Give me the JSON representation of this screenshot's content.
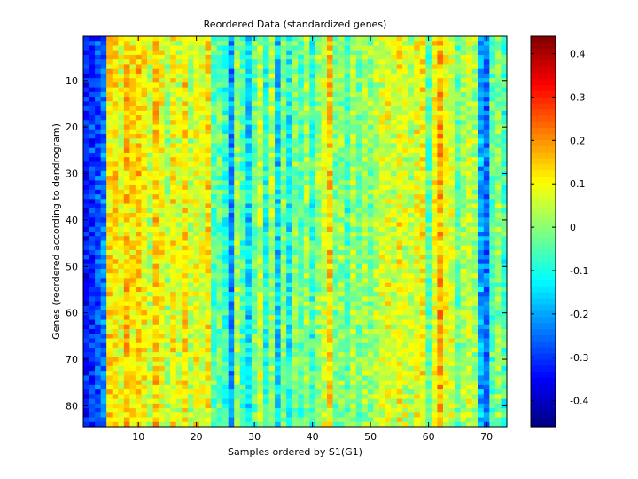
{
  "chart_data": {
    "type": "heatmap",
    "title": "Reordered Data (standardized genes)",
    "xlabel": "Samples ordered by S1(G1)",
    "ylabel": "Genes (reordered according to dendrogram)",
    "x_range": [
      0.5,
      73.5
    ],
    "y_range": [
      0.5,
      84.5
    ],
    "y_reversed": true,
    "n_samples": 73,
    "n_genes": 84,
    "x_ticks": [
      10,
      20,
      30,
      40,
      50,
      60,
      70
    ],
    "y_ticks": [
      10,
      20,
      30,
      40,
      50,
      60,
      70,
      80
    ],
    "colormap": "jet",
    "clim": [
      -0.46,
      0.44
    ],
    "colorbar_ticks": [
      -0.4,
      -0.3,
      -0.2,
      -0.1,
      0,
      0.1,
      0.2,
      0.3,
      0.4
    ],
    "colorbar_tick_labels": [
      "-0.4",
      "-0.3",
      "-0.2",
      "-0.1",
      "0",
      "0.1",
      "0.2",
      "0.3",
      "0.4"
    ],
    "sample_column_means": [
      -0.33,
      -0.31,
      -0.28,
      -0.25,
      0.13,
      0.12,
      0.08,
      0.16,
      0.11,
      0.14,
      0.1,
      0.05,
      0.15,
      0.09,
      0.02,
      0.1,
      0.06,
      0.13,
      0.05,
      0.09,
      0.07,
      0.12,
      -0.05,
      -0.03,
      -0.08,
      -0.22,
      0.02,
      -0.06,
      -0.15,
      -0.03,
      0.05,
      -0.1,
      0.03,
      -0.16,
      -0.02,
      -0.12,
      0.0,
      -0.05,
      0.02,
      -0.08,
      0.01,
      0.05,
      0.14,
      -0.02,
      0.0,
      -0.06,
      0.03,
      -0.02,
      0.02,
      -0.01,
      0.04,
      0.06,
      0.08,
      0.05,
      0.1,
      0.06,
      0.04,
      0.09,
      0.11,
      -0.05,
      0.1,
      0.18,
      0.08,
      0.07,
      -0.04,
      0.02,
      0.06,
      0.02,
      -0.2,
      -0.25,
      -0.05,
      0.0,
      -0.06
    ]
  }
}
